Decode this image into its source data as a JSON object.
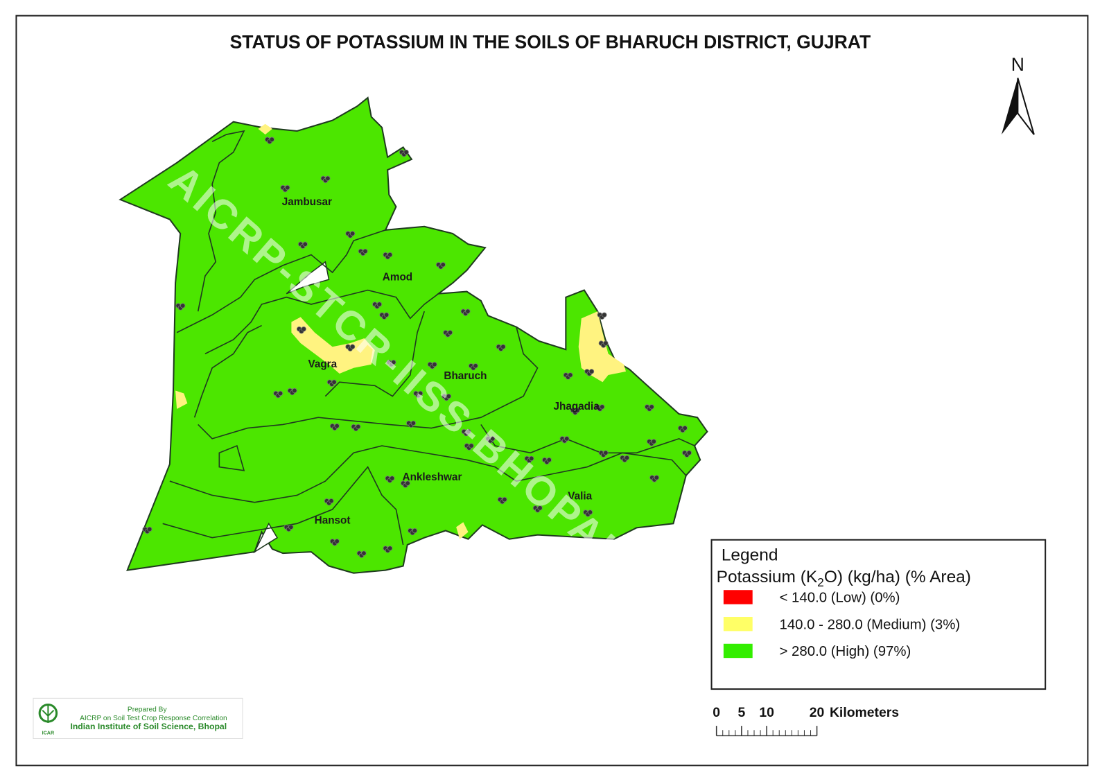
{
  "header": {
    "title": "STATUS OF POTASSIUM  IN THE SOILS OF BHARUCH  DISTRICT, GUJRAT"
  },
  "north_arrow": {
    "label": "N"
  },
  "watermark": "AICRP-STCR-IISS-BHOPAL",
  "talukas": [
    {
      "label": "Jambusar"
    },
    {
      "label": "Amod"
    },
    {
      "label": "Vagra"
    },
    {
      "label": "Bharuch"
    },
    {
      "label": "Jhagadia"
    },
    {
      "label": "Ankleshwar"
    },
    {
      "label": "Hansot"
    },
    {
      "label": "Valia"
    }
  ],
  "legend": {
    "title": "Legend",
    "subtitle": {
      "before": "Potassium (K",
      "subscript": "2",
      "after": "O) (kg/ha) (% Area)"
    },
    "items": [
      {
        "label": "< 140.0  (Low) (0%)",
        "color": "#ff0000"
      },
      {
        "label": "140.0  - 280.0   (Medium) (3%)",
        "color": "#ffff66"
      },
      {
        "label": "> 280.0   (High) (97%)",
        "color": "#33ee00"
      }
    ]
  },
  "scale_bar": {
    "ticks": [
      0,
      5,
      10,
      20
    ],
    "unit": "Kilometers"
  },
  "credit": {
    "prepared": "Prepared By",
    "project": "AICRP on Soil Test Crop Response Correlation",
    "institute": "Indian Institute of Soil Science, Bhopal",
    "logo": "ICAR"
  }
}
